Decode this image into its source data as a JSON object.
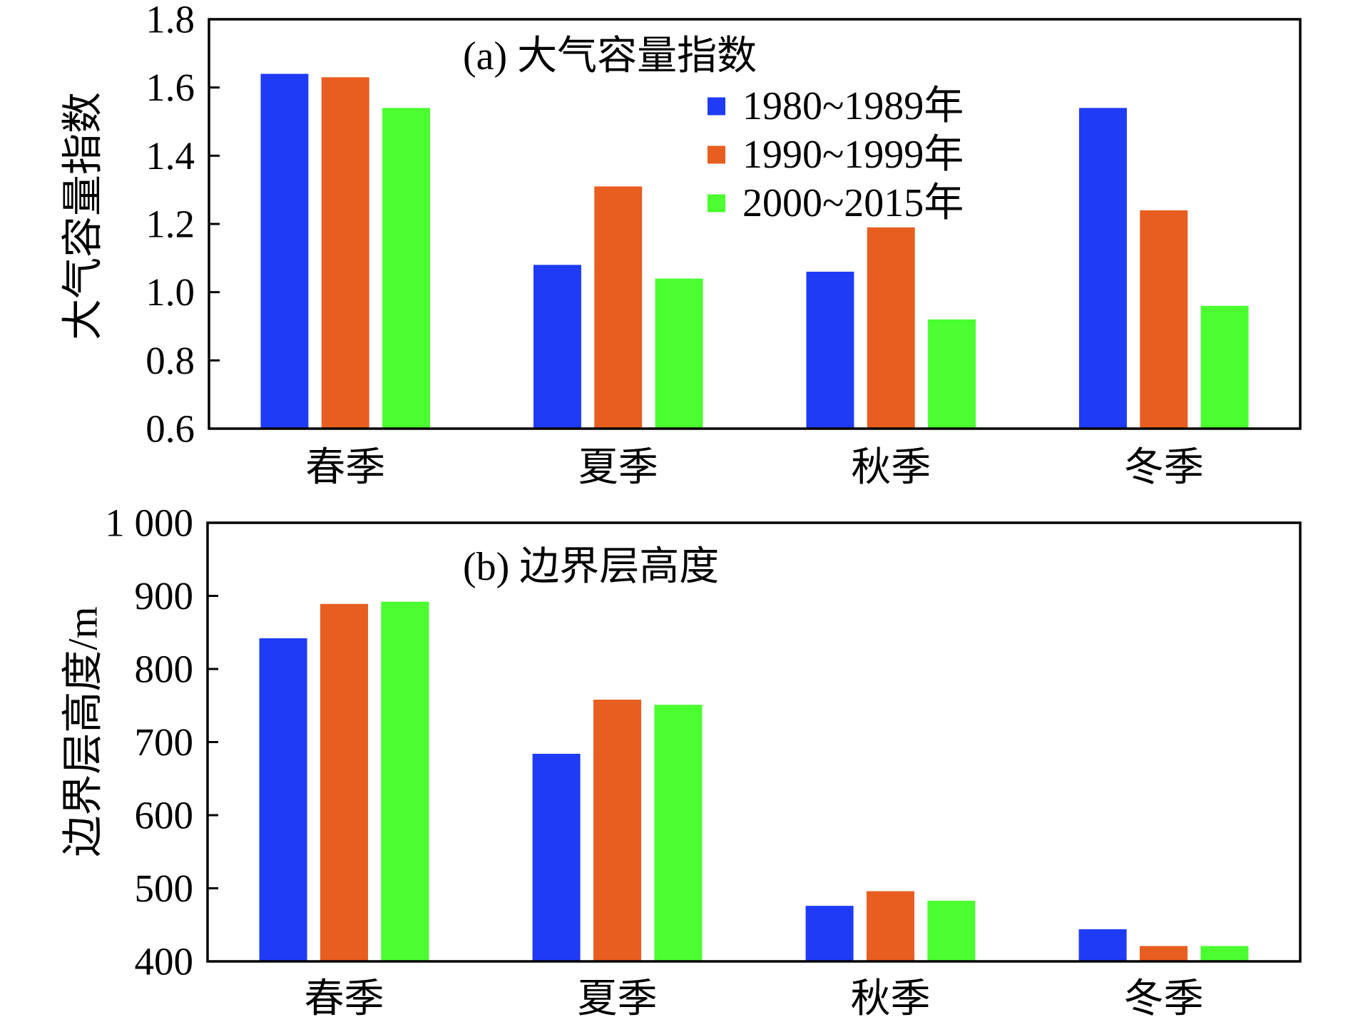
{
  "chart_data": [
    {
      "type": "bar",
      "title": "(a) 大气容量指数",
      "ylabel": "大气容量指数",
      "categories": [
        "春季",
        "夏季",
        "秋季",
        "冬季"
      ],
      "series": [
        {
          "name": "1980~1989年",
          "color": "#1F3BF5",
          "values": [
            1.64,
            1.08,
            1.06,
            1.54
          ]
        },
        {
          "name": "1990~1999年",
          "color": "#E85E20",
          "values": [
            1.63,
            1.31,
            1.19,
            1.24
          ]
        },
        {
          "name": "2000~2015年",
          "color": "#4BFF30",
          "values": [
            1.54,
            1.04,
            0.92,
            0.96
          ]
        }
      ],
      "ylim": [
        0.6,
        1.8
      ],
      "yticks": [
        {
          "value": 0.6,
          "label": "0.6"
        },
        {
          "value": 0.8,
          "label": "0.8"
        },
        {
          "value": 1.0,
          "label": "1.0"
        },
        {
          "value": 1.2,
          "label": "1.2"
        },
        {
          "value": 1.4,
          "label": "1.4"
        },
        {
          "value": 1.6,
          "label": "1.6"
        },
        {
          "value": 1.8,
          "label": "1.8"
        }
      ],
      "legend": "top-center",
      "grid": false
    },
    {
      "type": "bar",
      "title": "(b) 边界层高度",
      "ylabel": "边界层高度/m",
      "categories": [
        "春季",
        "夏季",
        "秋季",
        "冬季"
      ],
      "series": [
        {
          "color": "#1F3BF5",
          "values": [
            842,
            684,
            476,
            444
          ]
        },
        {
          "color": "#E85E20",
          "values": [
            889,
            758,
            496,
            421
          ]
        },
        {
          "color": "#4BFF30",
          "values": [
            892,
            751,
            483,
            421
          ]
        }
      ],
      "ylim": [
        400,
        1000
      ],
      "yticks": [
        {
          "value": 400,
          "label": "400"
        },
        {
          "value": 500,
          "label": "500"
        },
        {
          "value": 600,
          "label": "600"
        },
        {
          "value": 700,
          "label": "700"
        },
        {
          "value": 800,
          "label": "800"
        },
        {
          "value": 900,
          "label": "900"
        },
        {
          "value": 1000,
          "label": "1 000"
        }
      ],
      "legend": "none",
      "grid": false
    }
  ]
}
